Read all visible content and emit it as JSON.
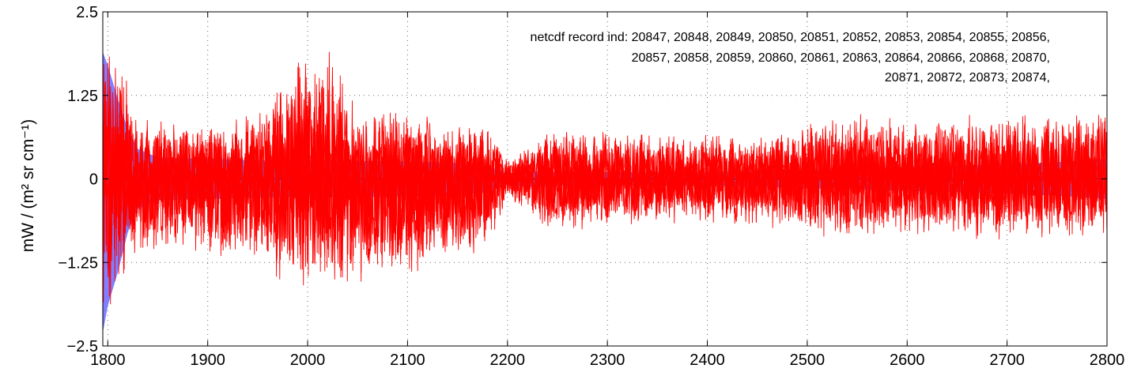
{
  "chart_data": {
    "type": "line",
    "title": "",
    "xlabel": "",
    "ylabel": "mW / (m² sr cm⁻¹)",
    "xlim": [
      1795,
      2800
    ],
    "ylim": [
      -2.5,
      2.5
    ],
    "grid": true,
    "x_ticks": [
      1800,
      1900,
      2000,
      2100,
      2200,
      2300,
      2400,
      2500,
      2600,
      2700,
      2800
    ],
    "y_ticks": [
      {
        "value": 2.5,
        "label": "2.5"
      },
      {
        "value": 1.25,
        "label": "1.25"
      },
      {
        "value": 0,
        "label": "0"
      },
      {
        "value": -1.25,
        "label": "−1.25"
      },
      {
        "value": -2.5,
        "label": "−2.5"
      }
    ],
    "annotation": [
      "netcdf record ind:  20847, 20848, 20849, 20850, 20851, 20852, 20853, 20854, 20855, 20856,",
      "20857, 20858, 20859, 20860, 20861, 20863, 20864, 20866, 20868, 20870,",
      "20871, 20872, 20873, 20874,"
    ],
    "series": [
      {
        "role": "uncertainty band",
        "color": "#7f7fff",
        "x": [
          1795,
          1800,
          1810,
          1820,
          1830,
          1850,
          1900,
          1950,
          2000,
          2050,
          2100,
          2150,
          2180,
          2200,
          2220,
          2240,
          2300,
          2350,
          2390,
          2400,
          2450,
          2500,
          2550,
          2600,
          2650,
          2700,
          2750,
          2800
        ],
        "upper": [
          1.9,
          1.7,
          1.2,
          0.75,
          0.45,
          0.32,
          0.3,
          0.28,
          0.27,
          0.27,
          0.26,
          0.24,
          0.2,
          0.08,
          0.12,
          0.1,
          0.1,
          0.1,
          0.1,
          0.1,
          0.12,
          0.14,
          0.16,
          0.18,
          0.2,
          0.22,
          0.25,
          0.3
        ],
        "lower": [
          -2.3,
          -1.9,
          -1.4,
          -0.8,
          -0.45,
          -0.32,
          -0.3,
          -0.28,
          -0.27,
          -0.27,
          -0.26,
          -0.24,
          -0.2,
          -0.08,
          -0.12,
          -0.1,
          -0.1,
          -0.1,
          -0.1,
          -0.1,
          -0.12,
          -0.14,
          -0.16,
          -0.18,
          -0.2,
          -0.22,
          -0.25,
          -0.3
        ]
      },
      {
        "role": "mean",
        "color": "#00008b",
        "x": [
          1795,
          2800
        ],
        "values": [
          0,
          0
        ]
      },
      {
        "role": "residuals envelope",
        "color": "#ff0000",
        "x": [
          1795,
          1800,
          1810,
          1820,
          1830,
          1850,
          1900,
          1950,
          1975,
          2000,
          2025,
          2050,
          2100,
          2150,
          2180,
          2200,
          2220,
          2240,
          2300,
          2350,
          2390,
          2400,
          2450,
          2500,
          2550,
          2600,
          2650,
          2700,
          2750,
          2800
        ],
        "upper": [
          2.0,
          2.2,
          1.9,
          1.6,
          1.0,
          0.9,
          0.85,
          1.0,
          1.8,
          1.9,
          2.0,
          1.1,
          1.0,
          0.9,
          0.85,
          0.3,
          0.5,
          0.7,
          0.75,
          0.7,
          0.7,
          0.7,
          0.65,
          0.9,
          1.0,
          0.9,
          0.95,
          1.0,
          1.0,
          1.0
        ],
        "lower": [
          -2.2,
          -2.0,
          -1.8,
          -1.5,
          -1.2,
          -1.1,
          -1.2,
          -1.25,
          -1.6,
          -1.7,
          -1.55,
          -1.6,
          -1.6,
          -1.3,
          -1.1,
          -0.3,
          -0.5,
          -0.8,
          -0.75,
          -0.7,
          -0.7,
          -0.7,
          -0.75,
          -0.85,
          -0.9,
          -0.85,
          -0.95,
          -1.0,
          -0.9,
          -0.9
        ]
      }
    ]
  }
}
